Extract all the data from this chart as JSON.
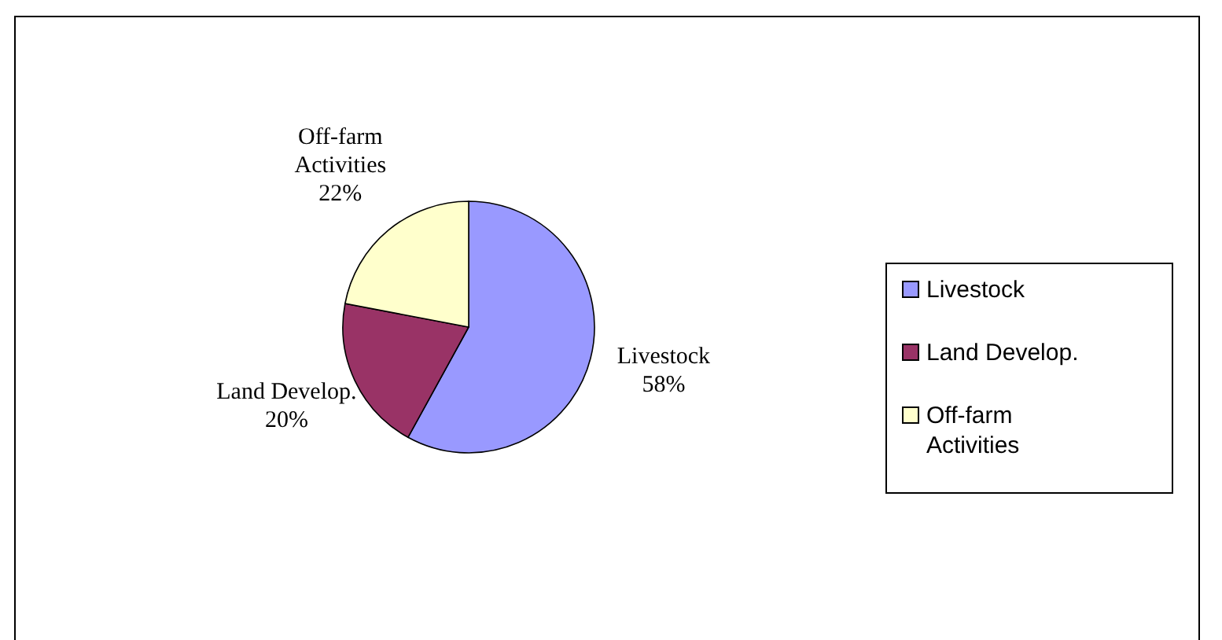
{
  "chart_data": {
    "type": "pie",
    "categories": [
      "Livestock",
      "Land Develop.",
      "Off-farm Activities"
    ],
    "values": [
      58,
      20,
      22
    ],
    "colors": [
      "#9999ff",
      "#993366",
      "#ffffcc"
    ],
    "value_labels": [
      "58%",
      "20%",
      "22%"
    ],
    "legend": "right"
  }
}
